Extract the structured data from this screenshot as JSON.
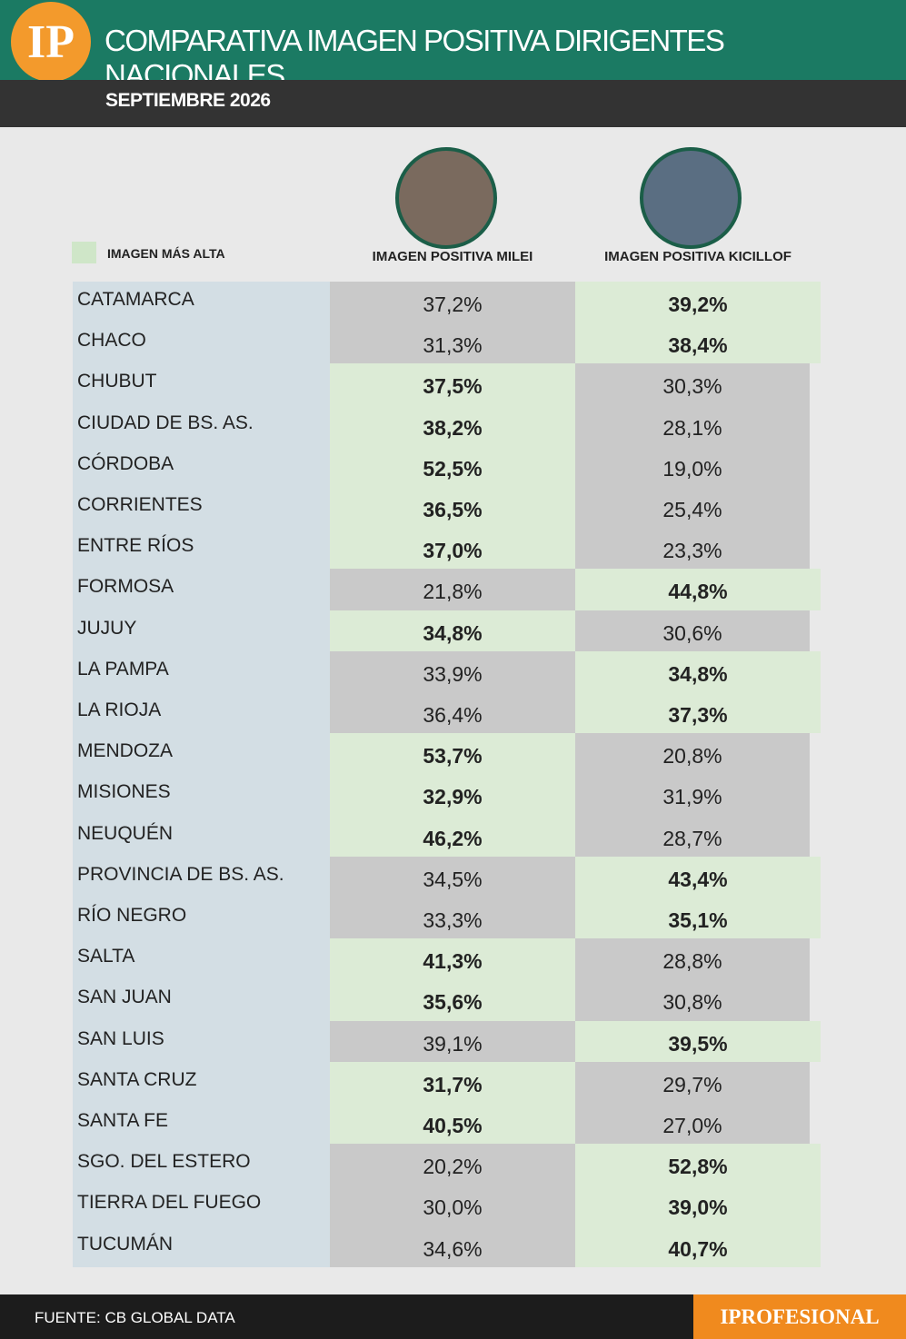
{
  "header": {
    "logo": "IP",
    "title": "COMPARATIVA IMAGEN POSITIVA DIRIGENTES NACIONALES",
    "subtitle": "SEPTIEMBRE 2026"
  },
  "legend": {
    "label": "IMAGEN MÁS ALTA"
  },
  "table": {
    "columns": [
      "IMAGEN POSITIVA MILEI",
      "IMAGEN POSITIVA KICILLOF"
    ],
    "rows": [
      [
        "CATAMARCA",
        "37,2%",
        "39,2%"
      ],
      [
        "CHACO",
        "31,3%",
        "38,4%"
      ],
      [
        "CHUBUT",
        "37,5%",
        "30,3%"
      ],
      [
        "CIUDAD DE BS. AS.",
        "38,2%",
        "28,1%"
      ],
      [
        "CÓRDOBA",
        "52,5%",
        "19,0%"
      ],
      [
        "CORRIENTES",
        "36,5%",
        "25,4%"
      ],
      [
        "ENTRE RÍOS",
        "37,0%",
        "23,3%"
      ],
      [
        "FORMOSA",
        "21,8%",
        "44,8%"
      ],
      [
        "JUJUY",
        "34,8%",
        "30,6%"
      ],
      [
        "LA PAMPA",
        "33,9%",
        "34,8%"
      ],
      [
        "LA RIOJA",
        "36,4%",
        "37,3%"
      ],
      [
        "MENDOZA",
        "53,7%",
        "20,8%"
      ],
      [
        "MISIONES",
        "32,9%",
        "31,9%"
      ],
      [
        "NEUQUÉN",
        "46,2%",
        "28,7%"
      ],
      [
        "PROVINCIA DE BS. AS.",
        "34,5%",
        "43,4%"
      ],
      [
        "RÍO NEGRO",
        "33,3%",
        "35,1%"
      ],
      [
        "SALTA",
        "41,3%",
        "28,8%"
      ],
      [
        "SAN JUAN",
        "35,6%",
        "30,8%"
      ],
      [
        "SAN LUIS",
        "39,1%",
        "39,5%"
      ],
      [
        "SANTA CRUZ",
        "31,7%",
        "29,7%"
      ],
      [
        "SANTA FE",
        "40,5%",
        "27,0%"
      ],
      [
        "SGO. DEL ESTERO",
        "20,2%",
        "52,8%"
      ],
      [
        "TIERRA DEL FUEGO",
        "30,0%",
        "39,0%"
      ],
      [
        "TUCUMÁN",
        "34,6%",
        "40,7%"
      ]
    ]
  },
  "footer": {
    "source": "FUENTE: CB GLOBAL DATA",
    "brand": "IPROFESIONAL"
  }
}
